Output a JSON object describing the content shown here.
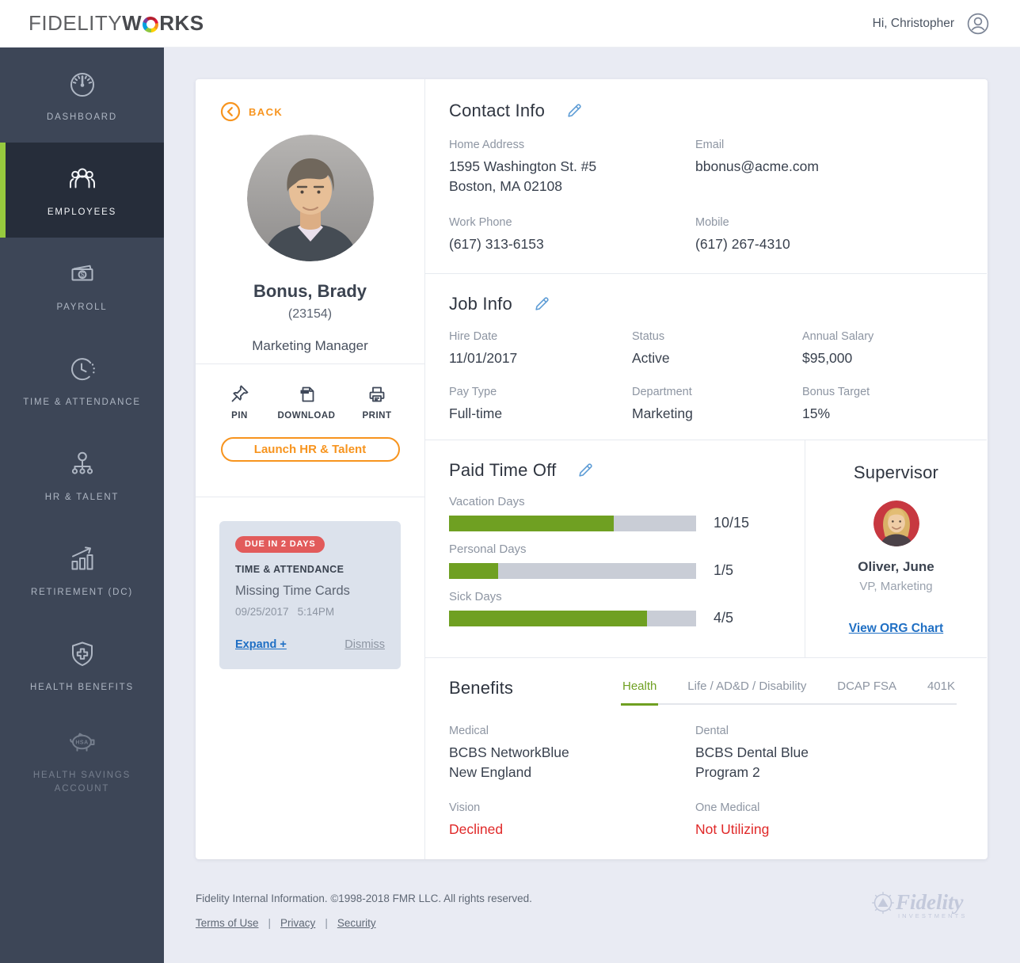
{
  "header": {
    "brand_fidelity": "FIDELITY",
    "brand_w": "W",
    "brand_rks": "RKS",
    "greeting": "Hi, Christopher"
  },
  "sidebar": {
    "items": [
      {
        "label": "DASHBOARD",
        "icon": "dashboard-icon",
        "active": false
      },
      {
        "label": "EMPLOYEES",
        "icon": "employees-icon",
        "active": true
      },
      {
        "label": "PAYROLL",
        "icon": "payroll-icon",
        "active": false
      },
      {
        "label": "TIME & ATTENDANCE",
        "icon": "time-attendance-icon",
        "active": false
      },
      {
        "label": "HR & TALENT",
        "icon": "hr-talent-icon",
        "active": false
      },
      {
        "label": "RETIREMENT (DC)",
        "icon": "retirement-icon",
        "active": false
      },
      {
        "label": "HEALTH BENEFITS",
        "icon": "health-benefits-icon",
        "active": false
      },
      {
        "label": "HEALTH SAVINGS ACCOUNT",
        "icon": "hsa-icon",
        "active": false,
        "disabled": true
      }
    ]
  },
  "profile": {
    "back_label": "BACK",
    "name": "Bonus, Brady",
    "employee_id": "(23154)",
    "job_title": "Marketing Manager",
    "actions": [
      {
        "label": "PIN",
        "icon": "pin-icon"
      },
      {
        "label": "DOWNLOAD",
        "icon": "download-icon"
      },
      {
        "label": "PRINT",
        "icon": "print-icon"
      }
    ],
    "launch_button_label": "Launch HR & Talent"
  },
  "notification": {
    "badge": "DUE IN 2 DAYS",
    "category": "TIME & ATTENDANCE",
    "title": "Missing Time Cards",
    "date": "09/25/2017",
    "time": "5:14PM",
    "expand_label": "Expand +",
    "dismiss_label": "Dismiss"
  },
  "contact_info": {
    "title": "Contact Info",
    "fields": [
      {
        "label": "Home Address",
        "value": "1595 Washington St. #5\nBoston, MA 02108"
      },
      {
        "label": "Email",
        "value": "bbonus@acme.com"
      },
      {
        "label": "Work Phone",
        "value": "(617) 313-6153"
      },
      {
        "label": "Mobile",
        "value": "(617) 267-4310"
      }
    ]
  },
  "job_info": {
    "title": "Job Info",
    "fields": [
      {
        "label": "Hire Date",
        "value": "11/01/2017"
      },
      {
        "label": "Status",
        "value": "Active"
      },
      {
        "label": "Annual Salary",
        "value": "$95,000"
      },
      {
        "label": "Pay Type",
        "value": "Full-time"
      },
      {
        "label": "Department",
        "value": "Marketing"
      },
      {
        "label": "Bonus Target",
        "value": "15%"
      }
    ]
  },
  "pto": {
    "title": "Paid Time Off",
    "items": [
      {
        "label": "Vacation Days",
        "used": 10,
        "total": 15,
        "display": "10/15"
      },
      {
        "label": "Personal Days",
        "used": 1,
        "total": 5,
        "display": "1/5"
      },
      {
        "label": "Sick Days",
        "used": 4,
        "total": 5,
        "display": "4/5"
      }
    ]
  },
  "supervisor": {
    "title": "Supervisor",
    "name": "Oliver, June",
    "role": "VP, Marketing",
    "org_chart_link": "View ORG Chart"
  },
  "benefits": {
    "title": "Benefits",
    "tabs": [
      {
        "label": "Health",
        "active": true
      },
      {
        "label": "Life / AD&D / Disability",
        "active": false
      },
      {
        "label": "DCAP FSA",
        "active": false
      },
      {
        "label": "401K",
        "active": false
      }
    ],
    "fields": [
      {
        "label": "Medical",
        "value": "BCBS NetworkBlue\nNew England",
        "status": "normal"
      },
      {
        "label": "Dental",
        "value": "BCBS Dental Blue\nProgram 2",
        "status": "normal"
      },
      {
        "label": "Vision",
        "value": "Declined",
        "status": "declined"
      },
      {
        "label": "One Medical",
        "value": "Not Utilizing",
        "status": "declined"
      }
    ]
  },
  "footer": {
    "copyright": "Fidelity Internal Information. ©1998-2018 FMR LLC. All rights reserved.",
    "links": [
      {
        "label": "Terms of Use"
      },
      {
        "label": "Privacy"
      },
      {
        "label": "Security"
      }
    ],
    "logo_text": "Fidelity",
    "logo_subtext": "INVESTMENTS"
  },
  "colors": {
    "accent_orange": "#f7941e",
    "accent_lime": "#97ca3e",
    "bar_green": "#6fa022",
    "link_blue": "#1f6fc4",
    "edit_blue": "#5b9bd5",
    "danger_red": "#e02828",
    "badge_red": "#e25b5b",
    "sidebar_bg": "#3d4657",
    "sidebar_active_bg": "#262d3a",
    "notification_bg": "#dce2ec",
    "page_bg": "#e9ebf3"
  }
}
